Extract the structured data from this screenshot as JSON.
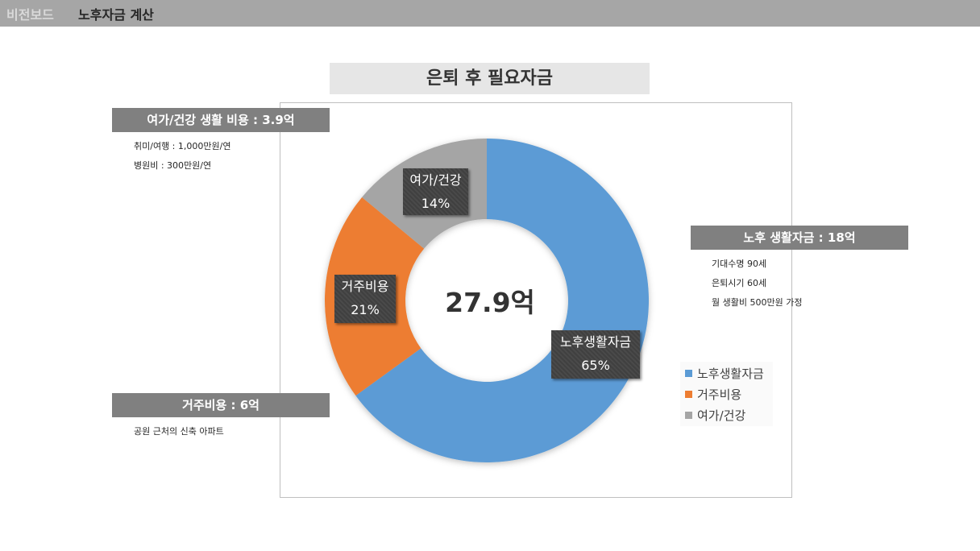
{
  "header": {
    "breadcrumb_root": "비전보드",
    "breadcrumb_current": "노후자금 계산"
  },
  "title": "은퇴 후 필요자금",
  "center_total": "27.9억",
  "side_notes": {
    "leisure": {
      "header": "여가/건강 생활 비용 : 3.9억",
      "lines": [
        "취미/여행 : 1,000만원/연",
        "병원비 : 300만원/연"
      ]
    },
    "living": {
      "header": "노후 생활자금 : 18억",
      "lines": [
        "기대수명 90세",
        "은퇴시기 60세",
        "월 생활비 500만원 가정"
      ]
    },
    "housing": {
      "header": "거주비용 : 6억",
      "lines": [
        "공원 근처의 신축 아파트"
      ]
    }
  },
  "chart_data": {
    "type": "pie",
    "variant": "donut",
    "categories": [
      "노후생활자금",
      "거주비용",
      "여가/건강"
    ],
    "values": [
      65,
      21,
      14
    ],
    "value_labels": [
      "65%",
      "21%",
      "14%"
    ],
    "colors": [
      "#5b9bd5",
      "#ed7d31",
      "#a5a5a5"
    ],
    "legend_position": "bottom-right"
  }
}
